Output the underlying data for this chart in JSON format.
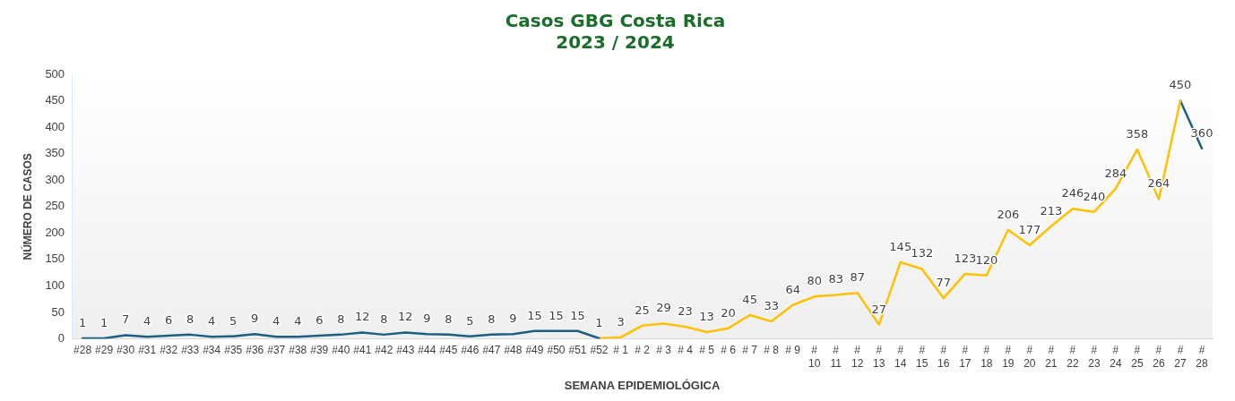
{
  "chart_data": {
    "type": "line",
    "title": [
      "Casos GBG Costa Rica",
      "2023 / 2024"
    ],
    "xlabel": "SEMANA EPIDEMIOLÓGICA",
    "ylabel": "NÚMERO DE CASOS",
    "categories": [
      "#28",
      "#29",
      "#30",
      "#31",
      "#32",
      "#33",
      "#34",
      "#35",
      "#36",
      "#37",
      "#38",
      "#39",
      "#40",
      "#41",
      "#42",
      "#43",
      "#44",
      "#45",
      "#46",
      "#47",
      "#48",
      "#49",
      "#50",
      "#51",
      "#52",
      "# 1",
      "# 2",
      "# 3",
      "# 4",
      "# 5",
      "# 6",
      "# 7",
      "# 8",
      "# 9",
      "# 10",
      "# 11",
      "# 12",
      "# 13",
      "# 14",
      "# 15",
      "# 16",
      "# 17",
      "# 18",
      "# 19",
      "# 20",
      "# 21",
      "# 22",
      "# 23",
      "# 24",
      "# 25",
      "# 26",
      "# 27",
      "# 28"
    ],
    "series": [
      {
        "color": "#1d5f80",
        "values": [
          1,
          1,
          7,
          4,
          6,
          8,
          4,
          5,
          9,
          4,
          4,
          6,
          8,
          12,
          8,
          12,
          9,
          8,
          5,
          8,
          9,
          15,
          15,
          15,
          1,
          null,
          null,
          null,
          null,
          null,
          null,
          null,
          null,
          null,
          null,
          null,
          null,
          null,
          null,
          null,
          null,
          null,
          null,
          null,
          null,
          null,
          null,
          null,
          null,
          null,
          null,
          null,
          null
        ],
        "value_labels": [
          "1",
          "1",
          "7",
          "4",
          "6",
          "8",
          "4",
          "5",
          "9",
          "4",
          "4",
          "6",
          "8",
          "12",
          "8",
          "12",
          "9",
          "8",
          "5",
          "8",
          "9",
          "15",
          "15",
          "15",
          "1",
          null,
          null,
          null,
          null,
          null,
          null,
          null,
          null,
          null,
          null,
          null,
          null,
          null,
          null,
          null,
          null,
          null,
          null,
          null,
          null,
          null,
          null,
          null,
          null,
          null,
          null,
          null,
          null
        ]
      },
      {
        "color": "#ffc000",
        "values": [
          null,
          null,
          null,
          null,
          null,
          null,
          null,
          null,
          null,
          null,
          null,
          null,
          null,
          null,
          null,
          null,
          null,
          null,
          null,
          null,
          null,
          null,
          null,
          null,
          1,
          3,
          25,
          29,
          23,
          13,
          20,
          45,
          33,
          64,
          80,
          83,
          87,
          27,
          145,
          132,
          77,
          123,
          120,
          206,
          177,
          213,
          246,
          240,
          284,
          358,
          264,
          450,
          null
        ],
        "value_labels": [
          null,
          null,
          null,
          null,
          null,
          null,
          null,
          null,
          null,
          null,
          null,
          null,
          null,
          null,
          null,
          null,
          null,
          null,
          null,
          null,
          null,
          null,
          null,
          null,
          null,
          "3",
          "25",
          "29",
          "23",
          "13",
          "20",
          "45",
          "33",
          "64",
          "80",
          "83",
          "87",
          "27",
          "145",
          "132",
          "77",
          "123",
          "120",
          "206",
          "177",
          "213",
          "246",
          "240",
          "284",
          "358",
          "264",
          "450",
          null
        ]
      },
      {
        "color": "#1d5f80",
        "values": [
          null,
          null,
          null,
          null,
          null,
          null,
          null,
          null,
          null,
          null,
          null,
          null,
          null,
          null,
          null,
          null,
          null,
          null,
          null,
          null,
          null,
          null,
          null,
          null,
          null,
          null,
          null,
          null,
          null,
          null,
          null,
          null,
          null,
          null,
          null,
          null,
          null,
          null,
          null,
          null,
          null,
          null,
          null,
          null,
          null,
          null,
          null,
          null,
          null,
          null,
          null,
          450,
          360
        ],
        "value_labels": [
          null,
          null,
          null,
          null,
          null,
          null,
          null,
          null,
          null,
          null,
          null,
          null,
          null,
          null,
          null,
          null,
          null,
          null,
          null,
          null,
          null,
          null,
          null,
          null,
          null,
          null,
          null,
          null,
          null,
          null,
          null,
          null,
          null,
          null,
          null,
          null,
          null,
          null,
          null,
          null,
          null,
          null,
          null,
          null,
          null,
          null,
          null,
          null,
          null,
          null,
          null,
          null,
          "360"
        ]
      }
    ],
    "ylim": [
      0,
      500
    ],
    "yticks": [
      0,
      50,
      100,
      150,
      200,
      250,
      300,
      350,
      400,
      450,
      500
    ],
    "grid": false,
    "legend": false,
    "marker": "none",
    "line_style": "solid"
  }
}
